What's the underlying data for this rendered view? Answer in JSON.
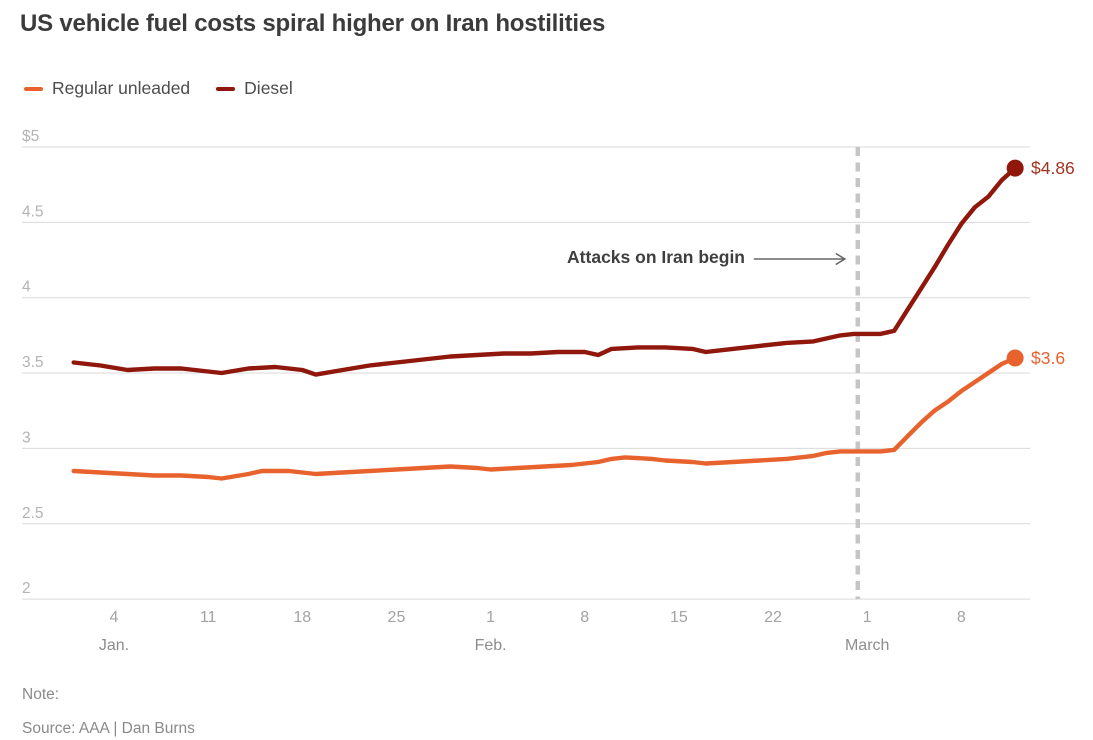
{
  "title": "US vehicle fuel costs spiral higher on Iran hostilities",
  "legend": [
    {
      "label": "Regular unleaded",
      "color": "#e8622d"
    },
    {
      "label": "Diesel",
      "color": "#8f170b"
    }
  ],
  "annotation": {
    "text": "Attacks on Iran begin"
  },
  "footer": {
    "note": "Note:",
    "source": "Source: AAA | Dan Burns"
  },
  "chart_data": {
    "type": "line",
    "title": "US vehicle fuel costs spiral higher on Iran hostilities",
    "x_unit": "day of year (Jan 1 = 1)",
    "ylim": [
      2,
      5
    ],
    "xlim_days": [
      1,
      71
    ],
    "grid": true,
    "legend_position": "top-left",
    "y_axis": {
      "ticks": [
        {
          "label": "$5",
          "value": 5
        },
        {
          "label": "4.5",
          "value": 4.5
        },
        {
          "label": "4",
          "value": 4
        },
        {
          "label": "3.5",
          "value": 3.5
        },
        {
          "label": "3",
          "value": 3
        },
        {
          "label": "2.5",
          "value": 2.5
        },
        {
          "label": "2",
          "value": 2
        }
      ]
    },
    "x_axis": {
      "ticks": [
        {
          "label": "4",
          "day": 4
        },
        {
          "label": "11",
          "day": 11
        },
        {
          "label": "18",
          "day": 18
        },
        {
          "label": "25",
          "day": 25
        },
        {
          "label": "1",
          "day": 32
        },
        {
          "label": "8",
          "day": 39
        },
        {
          "label": "15",
          "day": 46
        },
        {
          "label": "22",
          "day": 53
        },
        {
          "label": "1",
          "day": 60
        },
        {
          "label": "8",
          "day": 67
        }
      ],
      "month_labels": [
        {
          "label": "Jan.",
          "day": 4
        },
        {
          "label": "Feb.",
          "day": 32
        },
        {
          "label": "March",
          "day": 60
        }
      ]
    },
    "event_line": {
      "label": "Attacks on Iran begin",
      "day": 59.3,
      "date": "Feb. 28"
    },
    "series": [
      {
        "name": "Regular unleaded",
        "color": "#e8622d",
        "end_label": "$3.6",
        "end_value": 3.6,
        "points": [
          [
            1,
            2.85
          ],
          [
            3,
            2.84
          ],
          [
            5,
            2.83
          ],
          [
            7,
            2.82
          ],
          [
            9,
            2.82
          ],
          [
            11,
            2.81
          ],
          [
            12,
            2.8
          ],
          [
            14,
            2.83
          ],
          [
            15,
            2.85
          ],
          [
            17,
            2.85
          ],
          [
            19,
            2.83
          ],
          [
            21,
            2.84
          ],
          [
            23,
            2.85
          ],
          [
            25,
            2.86
          ],
          [
            27,
            2.87
          ],
          [
            29,
            2.88
          ],
          [
            31,
            2.87
          ],
          [
            32,
            2.86
          ],
          [
            34,
            2.87
          ],
          [
            36,
            2.88
          ],
          [
            38,
            2.89
          ],
          [
            40,
            2.91
          ],
          [
            41,
            2.93
          ],
          [
            42,
            2.94
          ],
          [
            44,
            2.93
          ],
          [
            45,
            2.92
          ],
          [
            47,
            2.91
          ],
          [
            48,
            2.9
          ],
          [
            50,
            2.91
          ],
          [
            52,
            2.92
          ],
          [
            54,
            2.93
          ],
          [
            56,
            2.95
          ],
          [
            57,
            2.97
          ],
          [
            58,
            2.98
          ],
          [
            60,
            2.98
          ],
          [
            61,
            2.98
          ],
          [
            62,
            2.99
          ],
          [
            63,
            3.08
          ],
          [
            64,
            3.17
          ],
          [
            65,
            3.25
          ],
          [
            66,
            3.31
          ],
          [
            67,
            3.38
          ],
          [
            68,
            3.44
          ],
          [
            69,
            3.5
          ],
          [
            70,
            3.56
          ],
          [
            71,
            3.6
          ]
        ]
      },
      {
        "name": "Diesel",
        "color": "#8f170b",
        "end_label": "$4.86",
        "end_value": 4.86,
        "points": [
          [
            1,
            3.57
          ],
          [
            3,
            3.55
          ],
          [
            5,
            3.52
          ],
          [
            7,
            3.53
          ],
          [
            9,
            3.53
          ],
          [
            11,
            3.51
          ],
          [
            12,
            3.5
          ],
          [
            14,
            3.53
          ],
          [
            16,
            3.54
          ],
          [
            18,
            3.52
          ],
          [
            19,
            3.49
          ],
          [
            21,
            3.52
          ],
          [
            23,
            3.55
          ],
          [
            25,
            3.57
          ],
          [
            27,
            3.59
          ],
          [
            29,
            3.61
          ],
          [
            31,
            3.62
          ],
          [
            33,
            3.63
          ],
          [
            35,
            3.63
          ],
          [
            37,
            3.64
          ],
          [
            39,
            3.64
          ],
          [
            40,
            3.62
          ],
          [
            41,
            3.66
          ],
          [
            43,
            3.67
          ],
          [
            45,
            3.67
          ],
          [
            47,
            3.66
          ],
          [
            48,
            3.64
          ],
          [
            50,
            3.66
          ],
          [
            52,
            3.68
          ],
          [
            54,
            3.7
          ],
          [
            56,
            3.71
          ],
          [
            57,
            3.73
          ],
          [
            58,
            3.75
          ],
          [
            59,
            3.76
          ],
          [
            61,
            3.76
          ],
          [
            62,
            3.78
          ],
          [
            63,
            3.92
          ],
          [
            64,
            4.06
          ],
          [
            65,
            4.2
          ],
          [
            66,
            4.35
          ],
          [
            67,
            4.49
          ],
          [
            68,
            4.6
          ],
          [
            69,
            4.67
          ],
          [
            70,
            4.78
          ],
          [
            71,
            4.86
          ]
        ]
      }
    ],
    "style": {
      "grid_color": "#dadada",
      "y_tick_color": "#b3b3b3",
      "x_tick_color": "#a3a3a3",
      "month_label_color": "#8d8d8d",
      "event_line_color": "#c5c5c5",
      "arrow_color": "#666666",
      "diesel_label_color": "#a33422",
      "regular_label_color": "#e8622d"
    }
  }
}
